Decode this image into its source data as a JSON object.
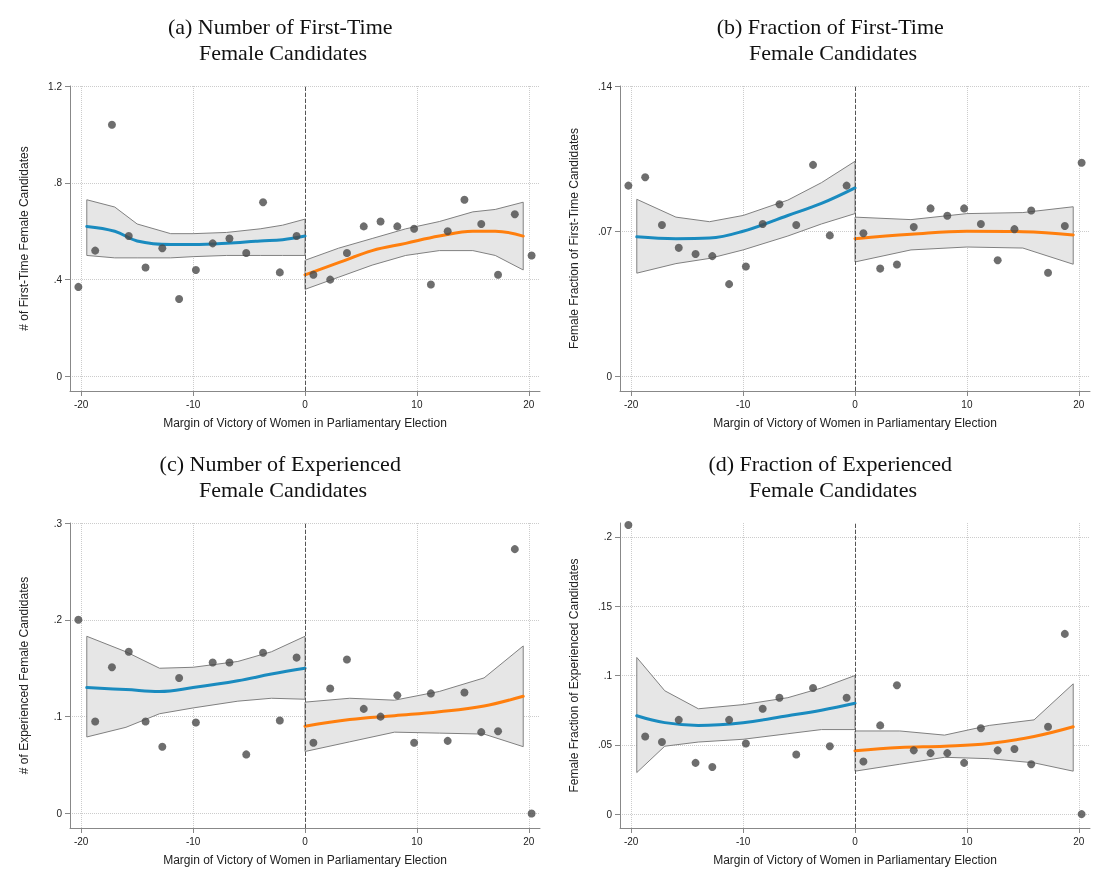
{
  "chart_data": [
    {
      "type": "scatter",
      "title": "(a) Number of First-Time Female Candidates",
      "xlabel": "Margin of Victory of Women in Parliamentary Election",
      "ylabel": "# of First-Time Female Candidates",
      "xlim": [
        -21,
        21
      ],
      "xticks": [
        -20,
        -10,
        0,
        10,
        20
      ],
      "ylim": [
        -0.06,
        1.2
      ],
      "yticks": [
        {
          "value": 0,
          "label": "0"
        },
        {
          "value": 0.4,
          "label": ".4"
        },
        {
          "value": 0.8,
          "label": ".8"
        },
        1.2
      ],
      "grid": true,
      "ref_lines": [
        {
          "axis": "x",
          "value": 0,
          "line_style": "dashed",
          "color": "#555555"
        }
      ],
      "series": [
        {
          "type": "scatter",
          "marker": "circle",
          "color": "#4a4a4a",
          "x": [
            -20.25,
            -18.75,
            -17.25,
            -15.75,
            -14.25,
            -12.75,
            -11.25,
            -9.75,
            -8.25,
            -6.75,
            -5.25,
            -3.75,
            -2.25,
            -0.75,
            0.75,
            2.25,
            3.75,
            5.25,
            6.75,
            8.25,
            9.75,
            11.25,
            12.75,
            14.25,
            15.75,
            17.25,
            18.75,
            20.25
          ],
          "values": [
            0.37,
            0.52,
            1.04,
            0.58,
            0.45,
            0.53,
            0.32,
            0.44,
            0.55,
            0.57,
            0.51,
            0.72,
            0.43,
            0.58,
            0.42,
            0.4,
            0.51,
            0.62,
            0.64,
            0.62,
            0.61,
            0.38,
            0.6,
            0.73,
            0.63,
            0.42,
            0.67,
            0.5
          ]
        },
        {
          "type": "line",
          "marker": "none",
          "line_style": "solid",
          "color": "#1a8bbf",
          "x": [
            -19.5,
            -17,
            -15,
            -12,
            -10,
            -7,
            -4,
            -2,
            0
          ],
          "values": [
            0.62,
            0.6,
            0.56,
            0.545,
            0.545,
            0.55,
            0.56,
            0.565,
            0.58
          ],
          "lower": [
            0.5,
            0.49,
            0.49,
            0.49,
            0.495,
            0.5,
            0.5,
            0.5,
            0.5
          ],
          "upper": [
            0.73,
            0.7,
            0.63,
            0.59,
            0.59,
            0.595,
            0.61,
            0.625,
            0.65
          ]
        },
        {
          "type": "line",
          "marker": "none",
          "line_style": "solid",
          "color": "#ff7f0e",
          "x": [
            0,
            3,
            6,
            9,
            12,
            15,
            17,
            19.5
          ],
          "values": [
            0.42,
            0.47,
            0.52,
            0.55,
            0.58,
            0.6,
            0.6,
            0.58
          ],
          "lower": [
            0.36,
            0.41,
            0.46,
            0.5,
            0.52,
            0.52,
            0.5,
            0.44
          ],
          "upper": [
            0.48,
            0.53,
            0.57,
            0.61,
            0.64,
            0.68,
            0.69,
            0.72
          ]
        }
      ]
    },
    {
      "type": "scatter",
      "title": "(b) Fraction of First-Time Female Candidates",
      "xlabel": "Margin of Victory of Women in Parliamentary Election",
      "ylabel": "Female Fraction of First-Time Candidates",
      "xlim": [
        -21,
        21
      ],
      "xticks": [
        -20,
        -10,
        0,
        10,
        20
      ],
      "ylim": [
        -0.007,
        0.14
      ],
      "yticks": [
        {
          "value": 0,
          "label": "0"
        },
        {
          "value": 0.07,
          "label": ".07"
        },
        {
          "value": 0.14,
          "label": ".14"
        }
      ],
      "grid": true,
      "ref_lines": [
        {
          "axis": "x",
          "value": 0,
          "line_style": "dashed",
          "color": "#555555"
        }
      ],
      "series": [
        {
          "type": "scatter",
          "marker": "circle",
          "color": "#4a4a4a",
          "x": [
            -20.25,
            -18.75,
            -17.25,
            -15.75,
            -14.25,
            -12.75,
            -11.25,
            -9.75,
            -8.25,
            -6.75,
            -5.25,
            -3.75,
            -2.25,
            -0.75,
            0.75,
            2.25,
            3.75,
            5.25,
            6.75,
            8.25,
            9.75,
            11.25,
            12.75,
            14.25,
            15.75,
            17.25,
            18.75,
            20.25
          ],
          "values": [
            0.092,
            0.096,
            0.073,
            0.062,
            0.059,
            0.058,
            0.0445,
            0.053,
            0.0735,
            0.083,
            0.073,
            0.102,
            0.068,
            0.092,
            0.069,
            0.052,
            0.054,
            0.072,
            0.081,
            0.0775,
            0.081,
            0.0735,
            0.056,
            0.071,
            0.08,
            0.05,
            0.0725,
            0.103
          ]
        },
        {
          "type": "line",
          "marker": "none",
          "line_style": "solid",
          "color": "#1a8bbf",
          "x": [
            -19.5,
            -16,
            -13,
            -10,
            -6,
            -3,
            0
          ],
          "values": [
            0.0673,
            0.0664,
            0.0667,
            0.07,
            0.0776,
            0.0834,
            0.0909
          ],
          "lower": [
            0.0498,
            0.0544,
            0.0569,
            0.061,
            0.0677,
            0.0735,
            0.0785
          ],
          "upper": [
            0.0854,
            0.0768,
            0.0746,
            0.0776,
            0.085,
            0.0934,
            0.1037
          ]
        },
        {
          "type": "line",
          "marker": "none",
          "line_style": "solid",
          "color": "#ff7f0e",
          "x": [
            0,
            5,
            10,
            15,
            19.5
          ],
          "values": [
            0.0664,
            0.0685,
            0.07,
            0.0698,
            0.0682
          ],
          "lower": [
            0.0552,
            0.061,
            0.0624,
            0.0619,
            0.0541
          ],
          "upper": [
            0.0768,
            0.0756,
            0.0785,
            0.079,
            0.0818
          ]
        }
      ]
    },
    {
      "type": "scatter",
      "title": "(c) Number of Experienced Female Candidates",
      "xlabel": "Margin of Victory of Women in Parliamentary Election",
      "ylabel": "# of Experienced Female Candidates",
      "xlim": [
        -21,
        21
      ],
      "xticks": [
        -20,
        -10,
        0,
        10,
        20
      ],
      "ylim": [
        -0.015,
        0.3
      ],
      "yticks": [
        {
          "value": 0,
          "label": "0"
        },
        {
          "value": 0.1,
          "label": ".1"
        },
        {
          "value": 0.2,
          "label": ".2"
        },
        {
          "value": 0.3,
          "label": ".3"
        }
      ],
      "grid": true,
      "ref_lines": [
        {
          "axis": "x",
          "value": 0,
          "line_style": "dashed",
          "color": "#555555"
        }
      ],
      "series": [
        {
          "type": "scatter",
          "marker": "circle",
          "color": "#4a4a4a",
          "x": [
            -20.25,
            -18.75,
            -17.25,
            -15.75,
            -14.25,
            -12.75,
            -11.25,
            -9.75,
            -8.25,
            -6.75,
            -5.25,
            -3.75,
            -2.25,
            -0.75,
            0.75,
            2.25,
            3.75,
            5.25,
            6.75,
            8.25,
            9.75,
            11.25,
            12.75,
            14.25,
            15.75,
            17.25,
            18.75,
            20.25
          ],
          "values": [
            0.2,
            0.095,
            0.151,
            0.167,
            0.095,
            0.069,
            0.14,
            0.094,
            0.156,
            0.156,
            0.061,
            0.166,
            0.096,
            0.161,
            0.073,
            0.129,
            0.159,
            0.108,
            0.1,
            0.122,
            0.073,
            0.124,
            0.075,
            0.125,
            0.084,
            0.085,
            0.273,
            0
          ]
        },
        {
          "type": "line",
          "marker": "none",
          "line_style": "solid",
          "color": "#1a8bbf",
          "x": [
            -19.5,
            -16,
            -13,
            -10,
            -6,
            -3,
            0
          ],
          "values": [
            0.13,
            0.128,
            0.126,
            0.13,
            0.137,
            0.144,
            0.15
          ],
          "lower": [
            0.079,
            0.089,
            0.103,
            0.109,
            0.116,
            0.119,
            0.118
          ],
          "upper": [
            0.183,
            0.167,
            0.15,
            0.151,
            0.157,
            0.167,
            0.183
          ]
        },
        {
          "type": "line",
          "marker": "none",
          "line_style": "solid",
          "color": "#ff7f0e",
          "x": [
            0,
            4,
            8,
            12,
            16,
            19.5
          ],
          "values": [
            0.09,
            0.097,
            0.101,
            0.105,
            0.111,
            0.121
          ],
          "lower": [
            0.064,
            0.074,
            0.084,
            0.083,
            0.082,
            0.069
          ],
          "upper": [
            0.115,
            0.119,
            0.117,
            0.126,
            0.14,
            0.173
          ]
        }
      ]
    },
    {
      "type": "scatter",
      "title": "(d) Fraction of Experienced Female Candidates",
      "xlabel": "Margin of Victory of Women in Parliamentary Election",
      "ylabel": "Female Fraction of Experienced Candidates",
      "xlim": [
        -21,
        21
      ],
      "xticks": [
        -20,
        -10,
        0,
        10,
        20
      ],
      "ylim": [
        -0.01,
        0.21
      ],
      "yticks": [
        {
          "value": 0,
          "label": "0"
        },
        {
          "value": 0.05,
          "label": ".05"
        },
        {
          "value": 0.1,
          "label": ".1"
        },
        {
          "value": 0.15,
          "label": ".15"
        },
        {
          "value": 0.2,
          "label": ".2"
        }
      ],
      "grid": true,
      "ref_lines": [
        {
          "axis": "x",
          "value": 0,
          "line_style": "dashed",
          "color": "#555555"
        }
      ],
      "series": [
        {
          "type": "scatter",
          "marker": "circle",
          "color": "#4a4a4a",
          "x": [
            -20.25,
            -18.75,
            -17.25,
            -15.75,
            -14.25,
            -12.75,
            -11.25,
            -9.75,
            -8.25,
            -6.75,
            -5.25,
            -3.75,
            -2.25,
            -0.75,
            0.75,
            2.25,
            3.75,
            5.25,
            6.75,
            8.25,
            9.75,
            11.25,
            12.75,
            14.25,
            15.75,
            17.25,
            18.75,
            20.25
          ],
          "values": [
            0.2086,
            0.056,
            0.052,
            0.068,
            0.037,
            0.034,
            0.068,
            0.051,
            0.076,
            0.084,
            0.043,
            0.091,
            0.049,
            0.084,
            0.038,
            0.064,
            0.093,
            0.046,
            0.044,
            0.044,
            0.037,
            0.062,
            0.046,
            0.047,
            0.036,
            0.063,
            0.13,
            0
          ]
        },
        {
          "type": "line",
          "marker": "none",
          "line_style": "solid",
          "color": "#1a8bbf",
          "x": [
            -19.5,
            -17,
            -14,
            -10,
            -6,
            -3,
            0
          ],
          "values": [
            0.071,
            0.066,
            0.064,
            0.066,
            0.071,
            0.075,
            0.08
          ],
          "lower": [
            0.03,
            0.049,
            0.052,
            0.054,
            0.058,
            0.061,
            0.061
          ],
          "upper": [
            0.113,
            0.089,
            0.076,
            0.079,
            0.084,
            0.091,
            0.1
          ]
        },
        {
          "type": "line",
          "marker": "none",
          "line_style": "solid",
          "color": "#ff7f0e",
          "x": [
            0,
            4,
            8,
            12,
            16,
            19.5
          ],
          "values": [
            0.0457,
            0.048,
            0.049,
            0.051,
            0.056,
            0.063
          ],
          "lower": [
            0.031,
            0.036,
            0.041,
            0.04,
            0.037,
            0.031
          ],
          "upper": [
            0.06,
            0.06,
            0.057,
            0.064,
            0.068,
            0.094
          ]
        }
      ]
    }
  ]
}
